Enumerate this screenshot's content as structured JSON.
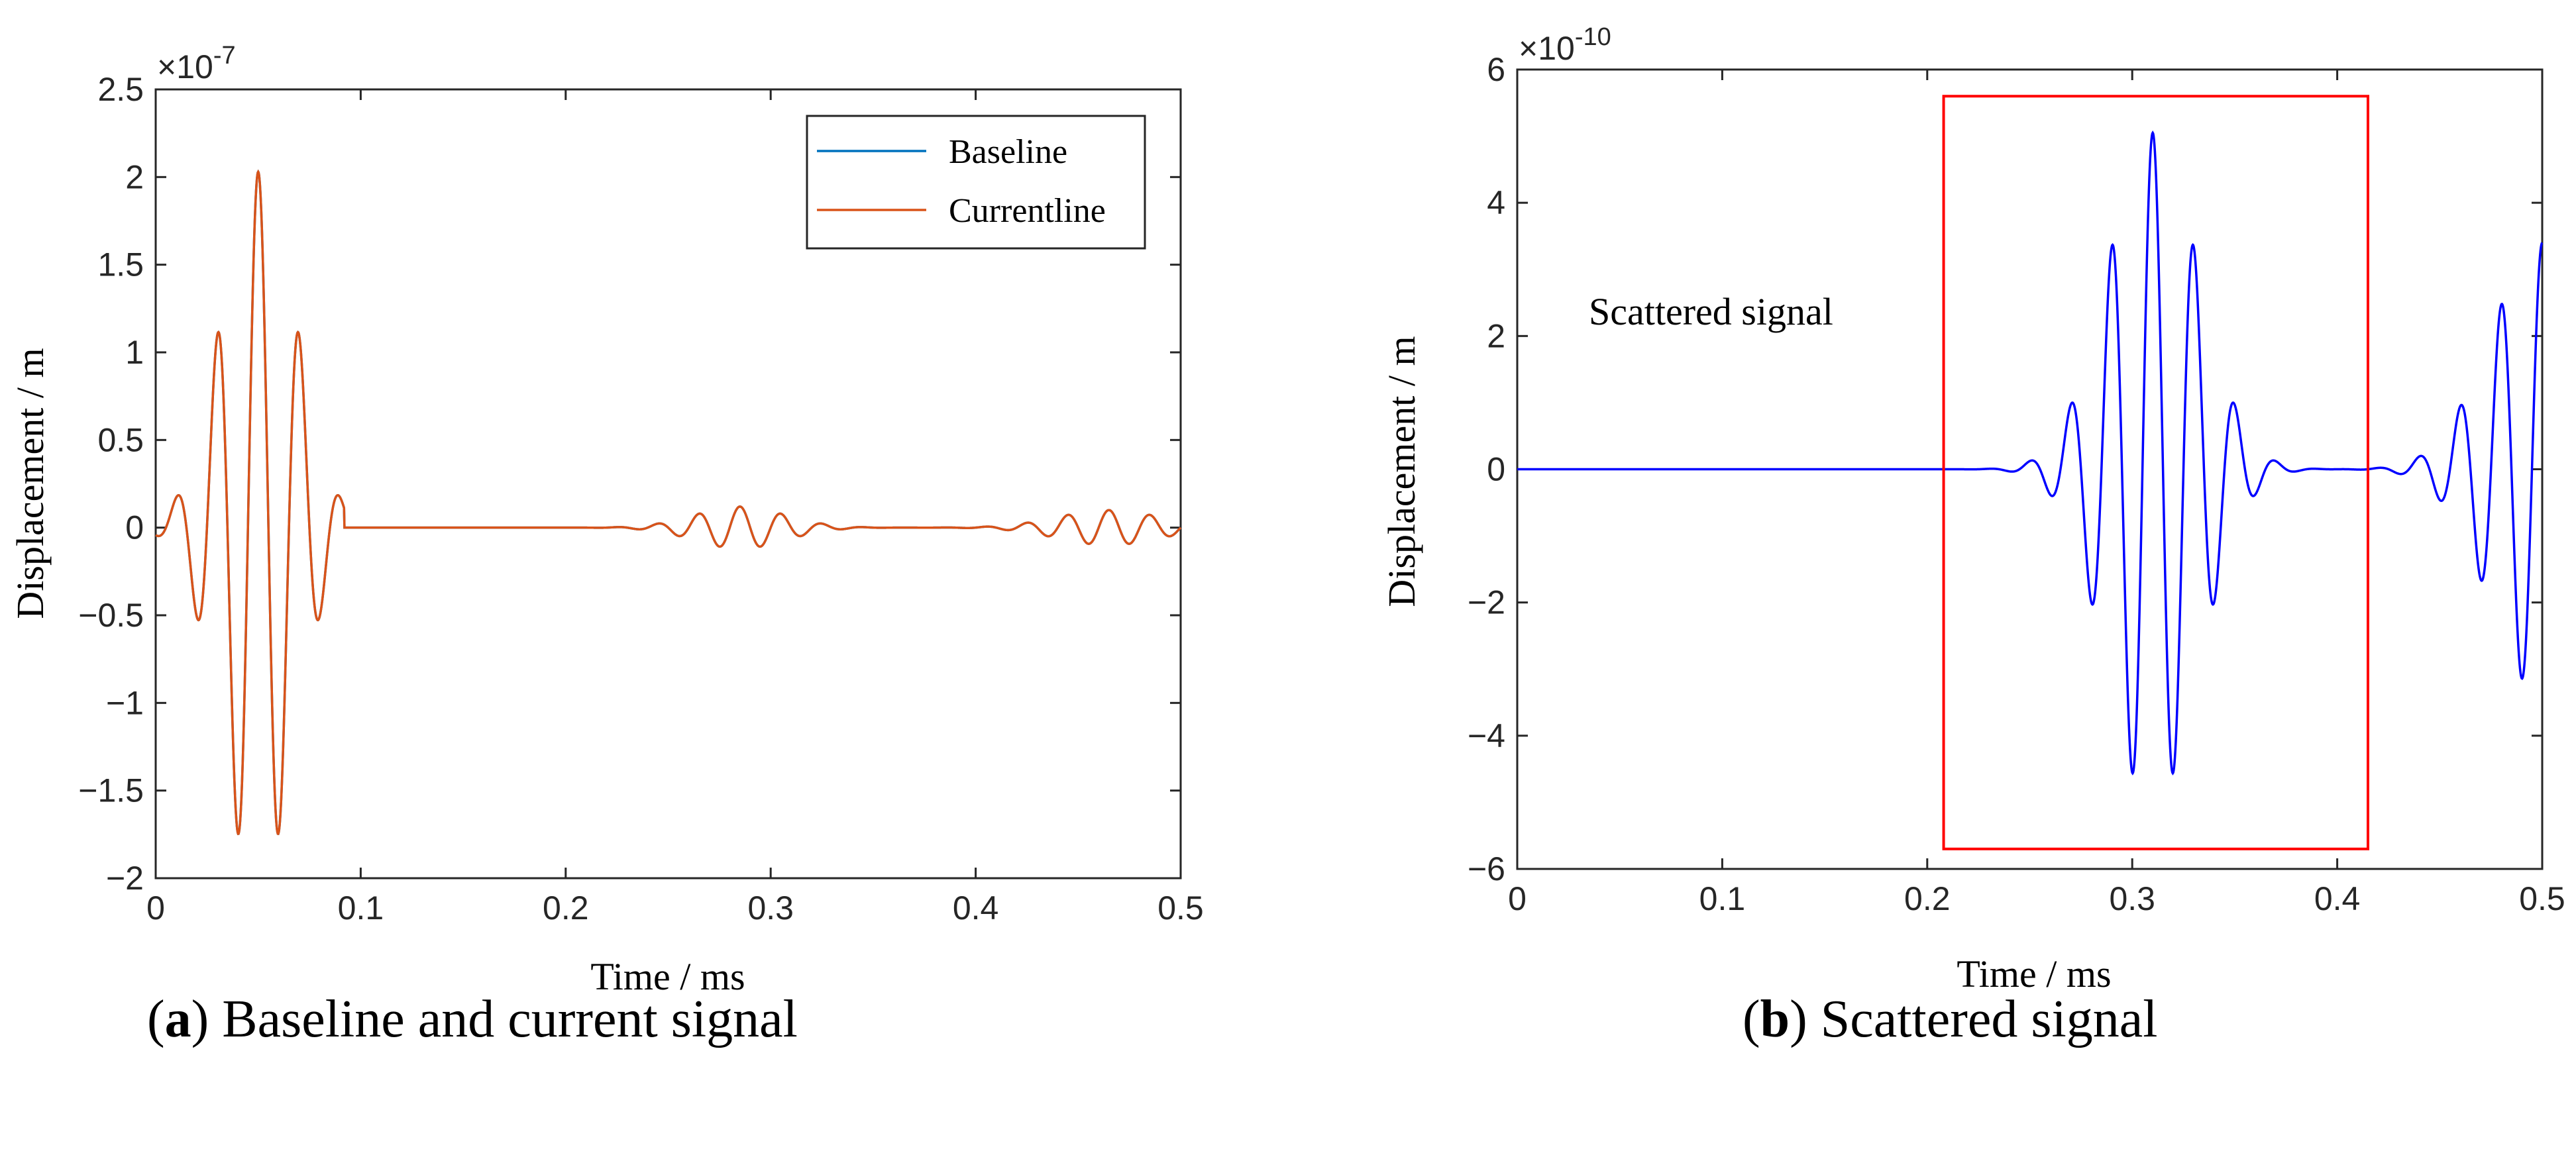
{
  "chart_data": [
    {
      "id": "a",
      "type": "line",
      "xlabel": "Time / ms",
      "ylabel": "Displacement / m",
      "xlim": [
        0,
        0.5
      ],
      "ylim": [
        -2,
        2.5
      ],
      "xticks": [
        0,
        0.1,
        0.2,
        0.3,
        0.4,
        0.5
      ],
      "xtick_labels": [
        "0",
        "0.1",
        "0.2",
        "0.3",
        "0.4",
        "0.5"
      ],
      "yticks": [
        -2,
        -1.5,
        -1,
        -0.5,
        0,
        0.5,
        1,
        1.5,
        2,
        2.5
      ],
      "ytick_labels": [
        "−2",
        "−1.5",
        "−1",
        "−0.5",
        "0",
        "0.5",
        "1",
        "1.5",
        "2",
        "2.5"
      ],
      "y_exponent": {
        "base": "×10",
        "power": "-7"
      },
      "legend": {
        "location": "top-right",
        "entries": [
          "Baseline",
          "Currentline"
        ]
      },
      "series": [
        {
          "name": "Baseline",
          "color": "#0072BD"
        },
        {
          "name": "Currentline",
          "color": "#D95319"
        }
      ],
      "caption_letter": "a",
      "caption_text": "Baseline and current signal",
      "shape": {
        "main_burst": {
          "center": 0.05,
          "sigma": 0.018,
          "freq_khz": 50,
          "amplitude": 2.03,
          "window": [
            0,
            0.092
          ]
        },
        "echo_bursts": [
          {
            "center": 0.285,
            "sigma": 0.022,
            "freq_khz": 50,
            "amplitude": 0.12
          },
          {
            "center": 0.465,
            "sigma": 0.025,
            "freq_khz": 50,
            "amplitude": 0.1
          }
        ]
      }
    },
    {
      "id": "b",
      "type": "line",
      "xlabel": "Time / ms",
      "ylabel": "Displacement / m",
      "xlim": [
        0,
        0.5
      ],
      "ylim": [
        -6,
        6
      ],
      "xticks": [
        0,
        0.1,
        0.2,
        0.3,
        0.4,
        0.5
      ],
      "xtick_labels": [
        "0",
        "0.1",
        "0.2",
        "0.3",
        "0.4",
        "0.5"
      ],
      "yticks": [
        -6,
        -4,
        -2,
        0,
        2,
        4,
        6
      ],
      "ytick_labels": [
        "−6",
        "−4",
        "−2",
        "0",
        "2",
        "4",
        "6"
      ],
      "y_exponent": {
        "base": "×10",
        "power": "-10"
      },
      "annotation": "Scattered signal",
      "highlight_box": {
        "x": [
          0.208,
          0.415
        ],
        "y": [
          -5.7,
          5.6
        ],
        "color": "#FF0000"
      },
      "series": [
        {
          "name": "Scattered signal",
          "color": "#0000FF"
        }
      ],
      "caption_letter": "b",
      "caption_text": "Scattered signal",
      "shape": {
        "main_burst": {
          "center": 0.31,
          "sigma": 0.022,
          "freq_khz": 50,
          "amplitude": 5.05
        },
        "tail_burst": {
          "center": 0.5,
          "sigma": 0.025,
          "freq_khz": 50,
          "amplitude": 3.4
        },
        "peaks_labelled": [
          {
            "x": 0.312,
            "y": 5.05
          },
          {
            "x": 0.304,
            "y": -4.65
          },
          {
            "x": 0.322,
            "y": -4.65
          },
          {
            "x": 0.294,
            "y": 3.8
          },
          {
            "x": 0.333,
            "y": 3.58
          }
        ]
      }
    }
  ]
}
